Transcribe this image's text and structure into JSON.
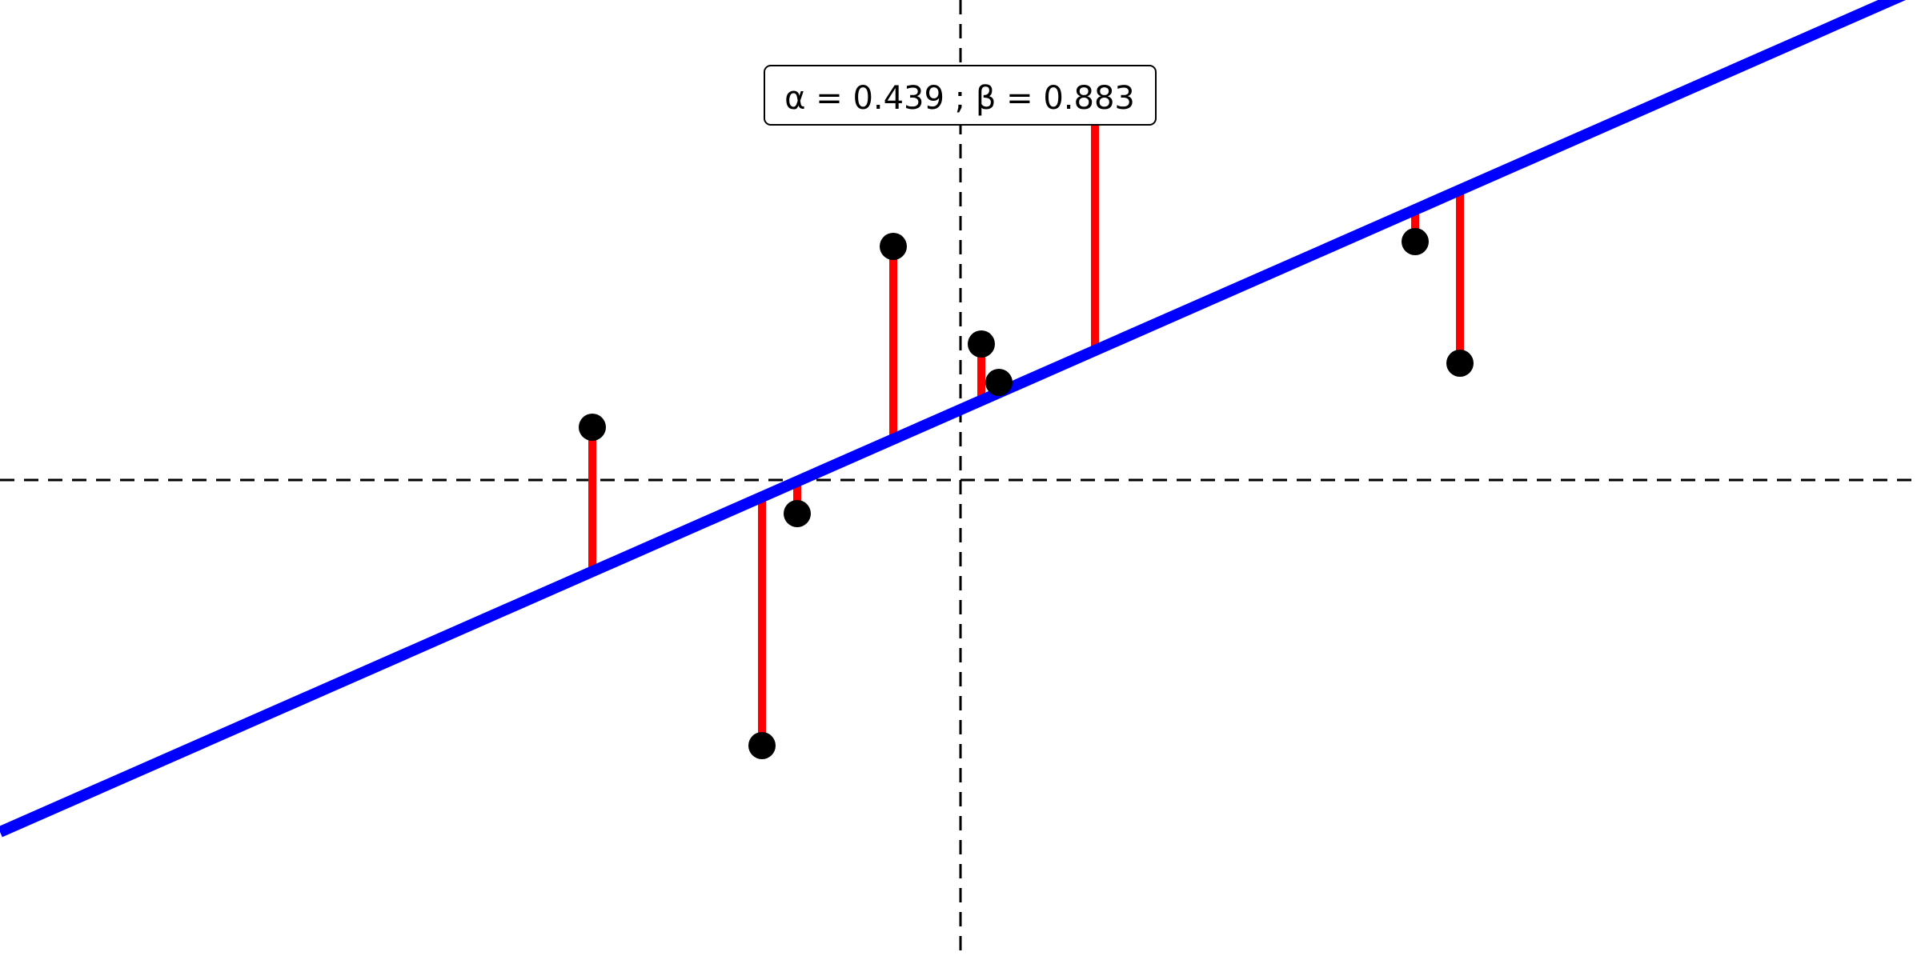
{
  "chart_data": {
    "type": "scatter",
    "title": "",
    "xlabel": "",
    "ylabel": "",
    "xlim": [
      -3.0,
      3.0
    ],
    "ylim": [
      -1.5,
      1.5
    ],
    "grid": false,
    "reference_lines": {
      "x": 0,
      "y": 0,
      "style": "dashed",
      "color": "#000000"
    },
    "annotation": {
      "alpha_label": "α = ",
      "alpha_value": "0.439",
      "separator": " ; ",
      "beta_label": "β = ",
      "beta_value": "0.883"
    },
    "fit_line": {
      "intercept": 0.22,
      "slope": 0.44,
      "color": "#0000ff"
    },
    "residual_color": "#ff0000",
    "point_color": "#000000",
    "points": [
      {
        "x": -1.15,
        "y": 0.165
      },
      {
        "x": -0.62,
        "y": -0.83
      },
      {
        "x": -0.51,
        "y": -0.105
      },
      {
        "x": -0.21,
        "y": 0.73
      },
      {
        "x": 0.065,
        "y": 0.425
      },
      {
        "x": 0.12,
        "y": 0.305
      },
      {
        "x": 0.42,
        "y": 1.17
      },
      {
        "x": 1.42,
        "y": 0.745
      },
      {
        "x": 1.56,
        "y": 0.365
      }
    ]
  }
}
